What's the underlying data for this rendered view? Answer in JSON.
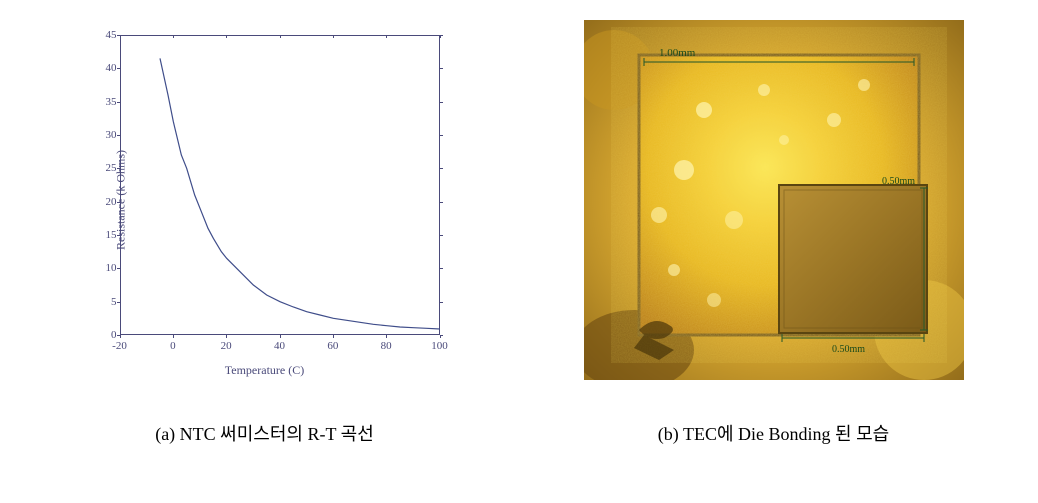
{
  "panel_a": {
    "caption": "(a) NTC 써미스터의 R-T 곡선",
    "chart": {
      "type": "line",
      "xlabel": "Temperature (C)",
      "ylabel": "Resistance (k Ohms)",
      "xlim": [
        -20,
        100
      ],
      "ylim": [
        0,
        45
      ],
      "y_ticks": [
        0,
        5,
        10,
        15,
        20,
        25,
        30,
        35,
        40,
        45
      ],
      "x_ticks": [
        -20,
        0,
        20,
        40,
        60,
        80,
        100
      ],
      "line_color": "#3f4d8a",
      "axis_color": "#4a4a7a",
      "background_color": "#ffffff",
      "line_width": 1.2,
      "font_size_label": 12,
      "font_size_tick": 11,
      "data_points": [
        {
          "x": -5,
          "y": 41.5
        },
        {
          "x": -2,
          "y": 36
        },
        {
          "x": 0,
          "y": 32
        },
        {
          "x": 3,
          "y": 27
        },
        {
          "x": 5,
          "y": 25
        },
        {
          "x": 8,
          "y": 21
        },
        {
          "x": 10,
          "y": 19
        },
        {
          "x": 13,
          "y": 16
        },
        {
          "x": 15,
          "y": 14.5
        },
        {
          "x": 18,
          "y": 12.5
        },
        {
          "x": 20,
          "y": 11.5
        },
        {
          "x": 25,
          "y": 9.5
        },
        {
          "x": 30,
          "y": 7.5
        },
        {
          "x": 35,
          "y": 6
        },
        {
          "x": 40,
          "y": 5
        },
        {
          "x": 45,
          "y": 4.2
        },
        {
          "x": 50,
          "y": 3.5
        },
        {
          "x": 55,
          "y": 3
        },
        {
          "x": 60,
          "y": 2.5
        },
        {
          "x": 65,
          "y": 2.2
        },
        {
          "x": 70,
          "y": 1.9
        },
        {
          "x": 75,
          "y": 1.6
        },
        {
          "x": 80,
          "y": 1.4
        },
        {
          "x": 85,
          "y": 1.2
        },
        {
          "x": 90,
          "y": 1.1
        },
        {
          "x": 95,
          "y": 1.0
        },
        {
          "x": 100,
          "y": 0.9
        }
      ]
    }
  },
  "panel_b": {
    "caption": "(b) TEC에 Die Bonding 된 모습",
    "image": {
      "description": "microscope-photo-die-bonding",
      "outer_size_label": "1.00mm",
      "inner_size_label": "0.50mm",
      "inner_size_label2": "0.50mm",
      "gold_bright": "#f5d03a",
      "gold_mid": "#e8b820",
      "gold_dark": "#b87a15",
      "gold_border": "#7a5a20",
      "dark_region": "#8a6a25",
      "corner_dark": "#5a4510",
      "measure_line_color": "#2a5a2a"
    }
  }
}
